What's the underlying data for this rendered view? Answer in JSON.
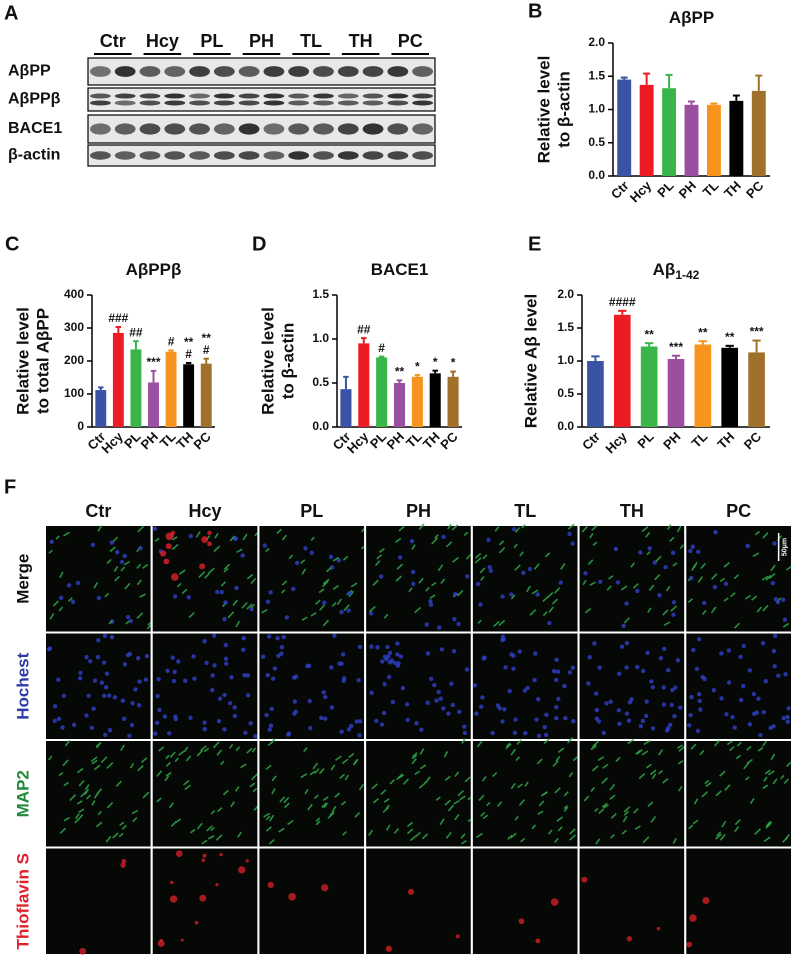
{
  "chart_data": [
    {
      "type": "bar",
      "panel": "B",
      "title": "AβPP",
      "ylabel": [
        "Relative level",
        "to β-actin"
      ],
      "categories": [
        "Ctr",
        "Hcy",
        "PL",
        "PH",
        "TL",
        "TH",
        "PC"
      ],
      "values": [
        1.45,
        1.37,
        1.32,
        1.07,
        1.07,
        1.13,
        1.28
      ],
      "errors": [
        0.03,
        0.17,
        0.2,
        0.05,
        0.02,
        0.08,
        0.23
      ],
      "colors": [
        "#3a53a4",
        "#ed1c24",
        "#3ab54a",
        "#9b4fa0",
        "#f7941d",
        "#000000",
        "#a0712b"
      ],
      "ylim": [
        0,
        2
      ],
      "yticks": [
        {
          "value": 0,
          "label": "0.0"
        },
        0.5,
        {
          "value": 1,
          "label": "1.0"
        },
        1.5,
        {
          "value": 2,
          "label": "2.0"
        }
      ]
    },
    {
      "type": "bar",
      "panel": "C",
      "title": "AβPPβ",
      "ylabel": [
        "Relative level",
        "to total AβPP"
      ],
      "categories": [
        "Ctr",
        "Hcy",
        "PL",
        "PH",
        "TL",
        "TH",
        "PC"
      ],
      "values": [
        112,
        285,
        235,
        135,
        228,
        190,
        192
      ],
      "errors": [
        8,
        18,
        25,
        35,
        4,
        4,
        15
      ],
      "annotations": [
        null,
        [
          "###"
        ],
        [
          "##"
        ],
        [
          "***"
        ],
        [
          "#"
        ],
        [
          "**",
          "#"
        ],
        [
          "**",
          "#"
        ]
      ],
      "colors": [
        "#3a53a4",
        "#ed1c24",
        "#3ab54a",
        "#9b4fa0",
        "#f7941d",
        "#000000",
        "#a0712b"
      ],
      "ylim": [
        0,
        400
      ],
      "yticks": [
        0,
        100,
        200,
        300,
        400
      ]
    },
    {
      "type": "bar",
      "panel": "D",
      "title": "BACE1",
      "ylabel": [
        "Relative level",
        "to β-actin"
      ],
      "categories": [
        "Ctr",
        "Hcy",
        "PL",
        "PH",
        "TL",
        "TH",
        "PC"
      ],
      "values": [
        0.43,
        0.95,
        0.79,
        0.5,
        0.57,
        0.61,
        0.57
      ],
      "errors": [
        0.14,
        0.06,
        0.01,
        0.03,
        0.02,
        0.03,
        0.06
      ],
      "annotations": [
        null,
        [
          "##"
        ],
        [
          "#"
        ],
        [
          "**"
        ],
        [
          "*"
        ],
        [
          "*"
        ],
        [
          "*"
        ]
      ],
      "colors": [
        "#3a53a4",
        "#ed1c24",
        "#3ab54a",
        "#9b4fa0",
        "#f7941d",
        "#000000",
        "#a0712b"
      ],
      "ylim": [
        0,
        1.5
      ],
      "yticks": [
        {
          "value": 0,
          "label": "0.0"
        },
        0.5,
        {
          "value": 1,
          "label": "1.0"
        },
        1.5
      ]
    },
    {
      "type": "bar",
      "panel": "E",
      "title": "Aβ",
      "title_subscript": "1-42",
      "ylabel": [
        "Relative Aβ level"
      ],
      "categories": [
        "Ctr",
        "Hcy",
        "PL",
        "PH",
        "TL",
        "TH",
        "PC"
      ],
      "values": [
        1.0,
        1.7,
        1.22,
        1.03,
        1.25,
        1.2,
        1.13
      ],
      "errors": [
        0.07,
        0.06,
        0.05,
        0.05,
        0.05,
        0.03,
        0.18
      ],
      "annotations": [
        null,
        [
          "####"
        ],
        [
          "**"
        ],
        [
          "***"
        ],
        [
          "**"
        ],
        [
          "**"
        ],
        [
          "***"
        ]
      ],
      "colors": [
        "#3a53a4",
        "#ed1c24",
        "#3ab54a",
        "#9b4fa0",
        "#f7941d",
        "#000000",
        "#a0712b"
      ],
      "ylim": [
        0,
        2
      ],
      "yticks": [
        {
          "value": 0,
          "label": "0.0"
        },
        0.5,
        {
          "value": 1,
          "label": "1.0"
        },
        1.5,
        {
          "value": 2,
          "label": "2.0"
        }
      ]
    }
  ],
  "blot": {
    "panel": "A",
    "lanes": [
      "Ctr",
      "Hcy",
      "PL",
      "PH",
      "TL",
      "TH",
      "PC"
    ],
    "rows": [
      "AβPP",
      "AβPPβ",
      "BACE1",
      "β-actin"
    ]
  },
  "micrographs": {
    "panel": "F",
    "columns": [
      "Ctr",
      "Hcy",
      "PL",
      "PH",
      "TL",
      "TH",
      "PC"
    ],
    "rows": [
      "Merge",
      "Hochest",
      "MAP2",
      "Thioflavin S"
    ],
    "scale_bar": "50μm"
  }
}
